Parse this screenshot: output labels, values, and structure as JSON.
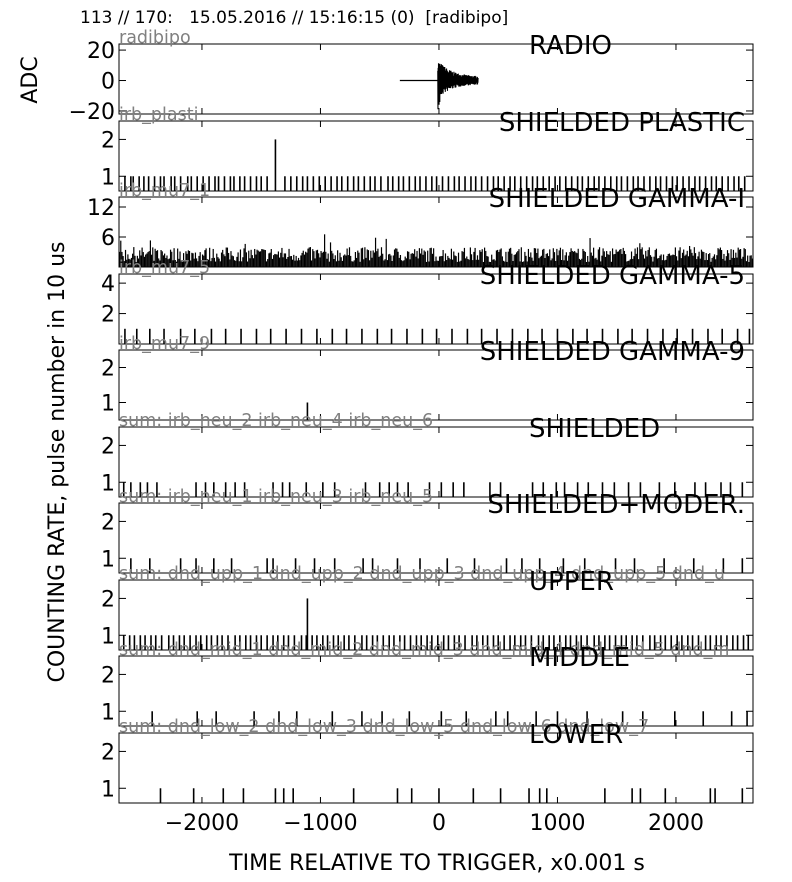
{
  "header": {
    "event_index": "113 // 170:",
    "timestamp": "15.05.2016 // 15:16:15 (0)",
    "station": "[radibipo]"
  },
  "labels": {
    "adc": "ADC",
    "counting_rate": "COUNTING RATE,   pulse number in 10 us",
    "xlabel": "TIME RELATIVE TO TRIGGER,   x0.001 s"
  },
  "chart_data": {
    "type": "line",
    "xlim": [
      -2700,
      2650
    ],
    "xticks": [
      -2000,
      -1000,
      0,
      1000,
      2000
    ],
    "xtick_labels": [
      "−2000",
      "−1000",
      "0",
      "1000",
      "2000"
    ],
    "grid": false,
    "panels": [
      {
        "id": "radio",
        "title": "RADIO",
        "channel": "radibipo",
        "ylim": [
          -22,
          24
        ],
        "yticks": [
          20,
          0,
          -20
        ],
        "ytick_labels": [
          "20",
          "0",
          "−20"
        ],
        "signal": {
          "start": -330,
          "onset": -10,
          "end": 330,
          "peak": 14,
          "trough": -20
        }
      },
      {
        "id": "shielded-plastic",
        "title": "SHIELDED PLASTIC",
        "channel": "irb_plasti",
        "ylim": [
          0.6,
          2.5
        ],
        "yticks": [
          2,
          1
        ],
        "pulses": [
          -2650,
          -2600,
          -2580,
          -2530,
          -2490,
          -2450,
          -2400,
          -2350,
          -2320,
          -2260,
          -2230,
          -2180,
          -2120,
          -2090,
          -2040,
          -1990,
          -1940,
          -1890,
          -1860,
          -1810,
          -1760,
          -1730,
          -1680,
          -1640,
          -1590,
          -1540,
          -1500,
          -1450,
          -1300,
          -1250,
          -1200,
          -1150,
          -1110,
          -1060,
          -1010,
          -960,
          -910,
          -860,
          -820,
          -770,
          -720,
          -680,
          -630,
          -580,
          -540,
          -490,
          -430,
          -390,
          -340,
          -300,
          -250,
          -200,
          -160,
          -110,
          -60,
          -20,
          30,
          80,
          130,
          170,
          220,
          270,
          310,
          360,
          410,
          460,
          500,
          550,
          600,
          640,
          690,
          740,
          790,
          830,
          880,
          930,
          980,
          1020,
          1070,
          1120,
          1170,
          1210,
          1260,
          1310,
          1350,
          1400,
          1450,
          1500,
          1540,
          1590,
          1640,
          1680,
          1730,
          1780,
          1830,
          1870,
          1920,
          1970,
          2010,
          2060,
          2110,
          2160,
          2200,
          2250,
          2300,
          2340,
          2390,
          2440,
          2490,
          2530,
          2580
        ],
        "peaks": [
          {
            "x": -1380,
            "y": 2
          }
        ]
      },
      {
        "id": "shielded-gamma-1",
        "title": "SHIELDED GAMMA-I",
        "channel": "irb_mu7_1",
        "ylim": [
          0,
          14
        ],
        "yticks": [
          12,
          6
        ],
        "noise": {
          "base": 1,
          "typical_max": 4,
          "extreme_max": 7,
          "spacing": 10
        }
      },
      {
        "id": "shielded-gamma-5",
        "title": "SHIELDED GAMMA-5",
        "channel": "irb_mu7_5",
        "ylim": [
          0,
          4.6
        ],
        "yticks": [
          4,
          2
        ],
        "pulses": [
          -2650,
          -2550,
          -2440,
          -2320,
          -2180,
          -2060,
          -1920,
          -1800,
          -1670,
          -1540,
          -1420,
          -1290,
          -1160,
          -1030,
          -900,
          -780,
          -650,
          -520,
          -400,
          -270,
          -140,
          -20,
          110,
          240,
          360,
          490,
          620,
          750,
          870,
          1000,
          1130,
          1250,
          1380,
          1510,
          1630,
          1760,
          1890,
          2010,
          2140,
          2270,
          2390,
          2520,
          2620
        ]
      },
      {
        "id": "shielded-gamma-9",
        "title": "SHIELDED GAMMA-9",
        "channel": "irb_mu7_9",
        "ylim": [
          0.5,
          2.5
        ],
        "yticks": [
          2,
          1
        ],
        "pulses": [
          -1110
        ],
        "peaks": []
      },
      {
        "id": "shielded",
        "title": "SHIELDED",
        "channel": "sum: irb_neu_2 irb_neu_4 irb_neu_6",
        "ylim": [
          0.6,
          2.5
        ],
        "yticks": [
          2,
          1
        ],
        "pulses": [
          -2660,
          -2600,
          -2520,
          -2460,
          -2380,
          -2050,
          -1970,
          -1900,
          -1800,
          -1720,
          -1640,
          -1400,
          -1320,
          -1260,
          -1120,
          -980,
          -880,
          -620,
          -500,
          -420,
          -350,
          -260,
          -80,
          20,
          120,
          210,
          430,
          520,
          790,
          880,
          990,
          1060,
          1170,
          1260,
          1380,
          1480,
          1600,
          1700,
          1860,
          1990,
          2160,
          2250,
          2380,
          2460,
          2560
        ]
      },
      {
        "id": "shielded-moder",
        "title": "SHIELDED+MODER.",
        "channel": "sum: irb_neu_1 irb_neu_3 irb_neu_5",
        "ylim": [
          0.6,
          2.5
        ],
        "yticks": [
          2,
          1
        ],
        "pulses": [
          -2600,
          -2440,
          -2180,
          -2050,
          -1900,
          -1750,
          -1450,
          -1400,
          -1210,
          -1050,
          -880,
          -640,
          -560,
          -350,
          -160,
          70,
          300,
          570,
          700,
          850,
          1050,
          1230,
          1490,
          1650,
          1900,
          2150,
          2400,
          2560
        ],
        "peaks": []
      },
      {
        "id": "upper",
        "title": "UPPER",
        "channel": "sum: dnd_upp_1 dnd_upp_2 dnd_upp_3 dnd_upp_4 dnd_upp_5 dnd_u",
        "ylim": [
          0.6,
          2.5
        ],
        "yticks": [
          2,
          1
        ],
        "pulses": [
          -2660,
          -2610,
          -2570,
          -2520,
          -2480,
          -2430,
          -2390,
          -2340,
          -2280,
          -2240,
          -2190,
          -2150,
          -2100,
          -2050,
          -2010,
          -1960,
          -1920,
          -1870,
          -1830,
          -1780,
          -1720,
          -1680,
          -1630,
          -1590,
          -1540,
          -1500,
          -1450,
          -1400,
          -1360,
          -1310,
          -1270,
          -1220,
          -1160,
          -1120,
          -1070,
          -1030,
          -980,
          -940,
          -890,
          -850,
          -800,
          -760,
          -710,
          -650,
          -610,
          -560,
          -520,
          -470,
          -420,
          -380,
          -330,
          -290,
          -240,
          -190,
          -150,
          -100,
          -60,
          -10,
          40,
          80,
          130,
          170,
          220,
          280,
          320,
          370,
          410,
          460,
          500,
          550,
          600,
          640,
          690,
          730,
          780,
          840,
          880,
          930,
          970,
          1020,
          1070,
          1110,
          1160,
          1200,
          1250,
          1310,
          1350,
          1400,
          1440,
          1490,
          1540,
          1580,
          1630,
          1670,
          1720,
          1780,
          1820,
          1870,
          1910,
          1960,
          2010,
          2050,
          2100,
          2140,
          2190,
          2250,
          2290,
          2340,
          2380,
          2430,
          2480,
          2520,
          2570,
          2610
        ],
        "peaks": [
          {
            "x": -1110,
            "y": 2
          }
        ]
      },
      {
        "id": "middle",
        "title": "MIDDLE",
        "channel": "sum: dnd_mid_1 dnd_mid_2 dnd_mid_3 dnd_mid_4 dnd_mid_5 dnd_m",
        "ylim": [
          0.6,
          2.5
        ],
        "yticks": [
          2,
          1
        ],
        "pulses": [
          -2420,
          -2040,
          -1880,
          -1560,
          -1350,
          -1200,
          -900,
          -650,
          -480,
          -250,
          20,
          230,
          480,
          580,
          820,
          1000,
          1250,
          1550,
          1720,
          1990,
          2230,
          2470,
          2600
        ]
      },
      {
        "id": "lower",
        "title": "LOWER",
        "channel": "sum: dnd_low_2 dnd_low_3 dnd_low_5 dnd_low_6 dnd_low_7",
        "ylim": [
          0.6,
          2.5
        ],
        "yticks": [
          2,
          1
        ],
        "pulses": [
          -2350,
          -2070,
          -1820,
          -1650,
          -1380,
          -1310,
          -1230,
          -720,
          -350,
          -230,
          0,
          290,
          520,
          760,
          850,
          910,
          1400,
          1630,
          1700,
          1910,
          2290,
          2330,
          2560
        ]
      }
    ]
  }
}
